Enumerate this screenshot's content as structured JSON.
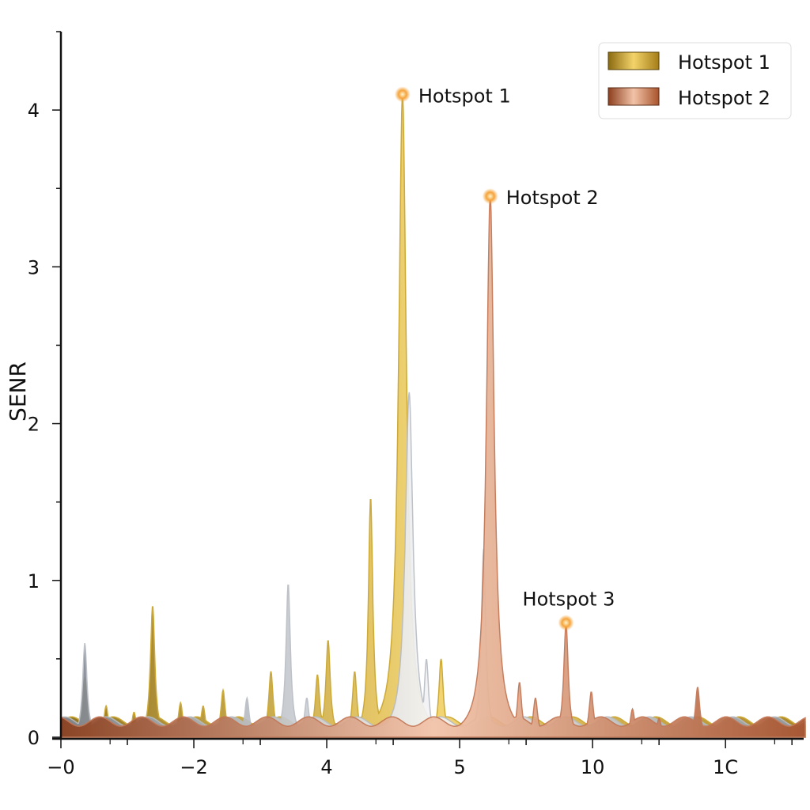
{
  "chart_data": {
    "type": "area",
    "title": "",
    "xlabel": "",
    "ylabel": "SENR",
    "x_tick_labels": [
      "−0",
      "−2",
      "4",
      "5",
      "10",
      "1C"
    ],
    "xlim": [
      0,
      5.6
    ],
    "ylim": [
      0,
      4.5
    ],
    "y_ticks": [
      0,
      1,
      2,
      3,
      4
    ],
    "grid": false,
    "legend_placement": "top-right",
    "legend": [
      {
        "label": "Hotspot 1",
        "color": "#c9a227"
      },
      {
        "label": "Hotspot 2",
        "color": "#d98a68"
      }
    ],
    "baseline": 0.1,
    "series": [
      {
        "color": "#c9a227",
        "peaks": [
          [
            0.08,
            0.12
          ],
          [
            0.18,
            0.38
          ],
          [
            0.34,
            0.2
          ],
          [
            0.55,
            0.16
          ],
          [
            0.69,
            0.84
          ],
          [
            0.9,
            0.22
          ],
          [
            1.07,
            0.2
          ],
          [
            1.22,
            0.3
          ],
          [
            1.58,
            0.42
          ],
          [
            1.93,
            0.4
          ],
          [
            2.01,
            0.62
          ],
          [
            2.21,
            0.42
          ],
          [
            2.33,
            1.53
          ],
          [
            2.57,
            4.1
          ],
          [
            2.86,
            0.5
          ]
        ]
      },
      {
        "color": "#b8bcc4",
        "peaks": [
          [
            0.18,
            0.6
          ],
          [
            1.4,
            0.25
          ],
          [
            1.71,
            0.98
          ],
          [
            1.85,
            0.25
          ],
          [
            2.62,
            2.2
          ],
          [
            2.75,
            0.5
          ],
          [
            3.18,
            1.2
          ]
        ]
      },
      {
        "color": "#c27452",
        "peaks": [
          [
            3.23,
            3.45
          ],
          [
            3.45,
            0.35
          ],
          [
            3.57,
            0.25
          ],
          [
            3.8,
            0.73
          ],
          [
            3.99,
            0.29
          ],
          [
            4.3,
            0.18
          ],
          [
            4.5,
            0.12
          ],
          [
            4.79,
            0.32
          ]
        ]
      }
    ],
    "annotations": [
      {
        "label": "Hotspot 1",
        "x": 2.57,
        "y": 4.1
      },
      {
        "label": "Hotspot 2",
        "x": 3.23,
        "y": 3.45
      },
      {
        "label": "Hotspot 3",
        "x": 3.8,
        "y": 0.73
      }
    ]
  }
}
